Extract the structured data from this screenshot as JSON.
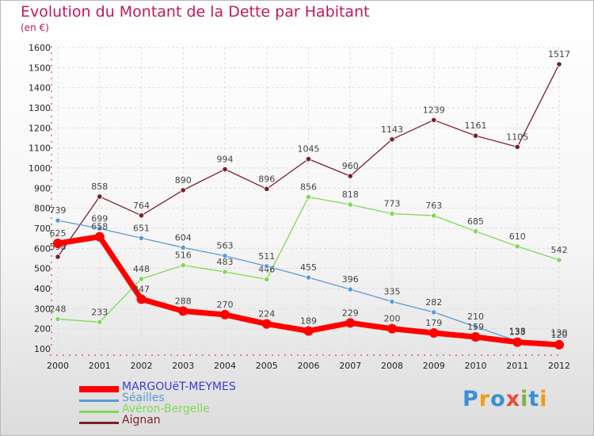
{
  "title": "Evolution du Montant de la Dette par Habitant",
  "subtitle": "(en €)",
  "logo": {
    "text": "Proxiti",
    "colors": [
      "#3a8fd6",
      "#f39c12",
      "#3a8fd6",
      "#e74c3c",
      "#7cb342",
      "#3a8fd6",
      "#f39c12"
    ]
  },
  "chart_data": {
    "type": "line",
    "x": [
      "2000",
      "2001",
      "2002",
      "2003",
      "2004",
      "2005",
      "2006",
      "2007",
      "2008",
      "2009",
      "2010",
      "2011",
      "2012"
    ],
    "ylim": [
      100,
      1600
    ],
    "yticks": [
      100,
      200,
      300,
      400,
      500,
      600,
      700,
      800,
      900,
      1000,
      1100,
      1200,
      1300,
      1400,
      1500,
      1600
    ],
    "grid": true,
    "legend_position": "bottom-left",
    "series": [
      {
        "name": "Aignan",
        "color": "#7a1f2b",
        "values": [
          558,
          858,
          764,
          890,
          994,
          896,
          1045,
          960,
          1143,
          1239,
          1161,
          1105,
          1517
        ],
        "labels": [
          "558",
          "858",
          "764",
          "890",
          "994",
          "896",
          "1045",
          "960",
          "1143",
          "1239",
          "1161",
          "1105",
          "1517"
        ]
      },
      {
        "name": "Avéron-Bergelle",
        "color": "#7ed957",
        "values": [
          248,
          233,
          448,
          516,
          483,
          446,
          856,
          818,
          773,
          763,
          685,
          610,
          542
        ],
        "labels": [
          "248",
          "233",
          "448",
          "516",
          "483",
          "446",
          "856",
          "818",
          "773",
          "763",
          "685",
          "610",
          "542"
        ]
      },
      {
        "name": "Séailles",
        "color": "#5b9bd5",
        "values": [
          739,
          699,
          651,
          604,
          563,
          511,
          455,
          396,
          335,
          282,
          210,
          138,
          130
        ],
        "labels": [
          "739",
          "699",
          "651",
          "604",
          "563",
          "511",
          "455",
          "396",
          "335",
          "282",
          "210",
          "138",
          "130"
        ]
      },
      {
        "name": "MARGOUëT-MEYMES",
        "color": "#ff0000",
        "values": [
          625,
          658,
          347,
          288,
          270,
          224,
          189,
          229,
          200,
          179,
          159,
          133,
          120
        ],
        "labels": [
          "625",
          "658",
          "347",
          "288",
          "270",
          "224",
          "189",
          "229",
          "200",
          "179",
          "159",
          "133",
          "120"
        ]
      }
    ],
    "legend": [
      {
        "name": "MARGOUëT-MEYMES",
        "color": "#ff0000"
      },
      {
        "name": "Séailles",
        "color": "#5b9bd5"
      },
      {
        "name": "Avéron-Bergelle",
        "color": "#7ed957"
      },
      {
        "name": "Aignan",
        "color": "#7a1f2b"
      }
    ]
  }
}
